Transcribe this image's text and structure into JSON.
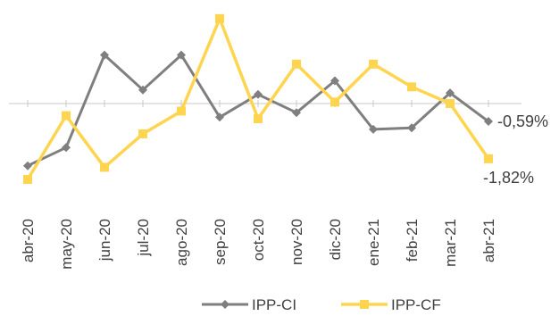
{
  "chart_data": {
    "type": "line",
    "title": "",
    "xlabel": "",
    "ylabel": "",
    "categories": [
      "abr-20",
      "may-20",
      "jun-20",
      "jul-20",
      "ago-20",
      "sep-20",
      "oct-20",
      "nov-20",
      "dic-20",
      "ene-21",
      "feb-21",
      "mar-21",
      "abr-21"
    ],
    "ylim": [
      -2.5,
      2.5
    ],
    "grid": false,
    "legend_position": "bottom",
    "series": [
      {
        "name": "IPP-CI",
        "color": "#7f7f7f",
        "marker": "diamond",
        "values": [
          -2.05,
          -1.45,
          1.6,
          0.45,
          1.6,
          -0.45,
          0.3,
          -0.3,
          0.75,
          -0.85,
          -0.8,
          0.35,
          -0.59
        ]
      },
      {
        "name": "IPP-CF",
        "color": "#ffd54f",
        "marker": "square",
        "values": [
          -2.5,
          -0.4,
          -2.1,
          -1.0,
          -0.25,
          2.8,
          -0.5,
          1.3,
          0.05,
          1.3,
          0.55,
          0.0,
          -1.82
        ]
      }
    ],
    "data_labels": [
      {
        "series": 0,
        "index": 12,
        "text": "-0,59%"
      },
      {
        "series": 1,
        "index": 12,
        "text": "-1,82%"
      }
    ]
  }
}
